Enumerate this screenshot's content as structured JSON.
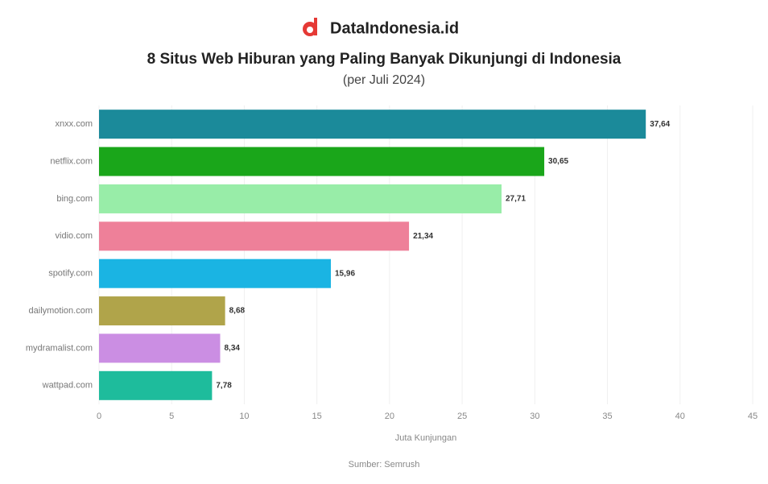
{
  "brand": "DataIndonesia.id",
  "chart_data": {
    "type": "barh",
    "title": "8 Situs Web Hiburan yang Paling Banyak Dikunjungi di Indonesia",
    "subtitle": "(per Juli 2024)",
    "x_label": "Juta Kunjungan",
    "source": "Sumber: Semrush",
    "categories": [
      "xnxx.com",
      "netflix.com",
      "bing.com",
      "vidio.com",
      "spotify.com",
      "dailymotion.com",
      "mydramalist.com",
      "wattpad.com"
    ],
    "values": [
      37.64,
      30.65,
      27.71,
      21.34,
      15.96,
      8.68,
      8.34,
      7.78
    ],
    "value_labels": [
      "37,64",
      "30,65",
      "27,71",
      "21,34",
      "15,96",
      "8,68",
      "8,34",
      "7,78"
    ],
    "colors": [
      "#1b8a9a",
      "#1aa61a",
      "#98eda8",
      "#ee8099",
      "#1ab4e3",
      "#b0a44a",
      "#cb8ee3",
      "#1ebc9c"
    ],
    "xlim": [
      0,
      45
    ],
    "xticks": [
      0,
      5,
      10,
      15,
      20,
      25,
      30,
      35,
      40,
      45
    ]
  }
}
